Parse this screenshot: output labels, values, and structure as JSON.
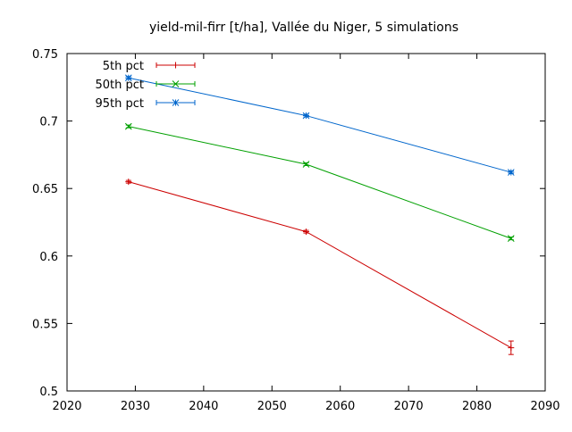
{
  "chart_data": {
    "type": "line",
    "title": "yield-mil-firr [t/ha], Vallée du Niger, 5 simulations",
    "xlabel": "",
    "ylabel": "",
    "xlim": [
      2020,
      2090
    ],
    "ylim": [
      0.5,
      0.75
    ],
    "xticks": [
      "2020",
      "2030",
      "2040",
      "2050",
      "2060",
      "2070",
      "2080",
      "2090"
    ],
    "yticks": [
      "0.5",
      "0.55",
      "0.6",
      "0.65",
      "0.7",
      "0.75"
    ],
    "x": [
      2029,
      2055,
      2085
    ],
    "grid": false,
    "legend_position": "top-left",
    "series": [
      {
        "name": "5th pct",
        "color": "#cc0000",
        "marker": "plus",
        "values": [
          0.655,
          0.618,
          0.532
        ],
        "errors": [
          0.001,
          0.001,
          0.005
        ]
      },
      {
        "name": "50th pct",
        "color": "#00a000",
        "marker": "cross",
        "values": [
          0.696,
          0.668,
          0.613
        ],
        "errors": [
          0.001,
          0.001,
          0.001
        ]
      },
      {
        "name": "95th pct",
        "color": "#0066cc",
        "marker": "star",
        "values": [
          0.732,
          0.704,
          0.662
        ],
        "errors": [
          0.001,
          0.001,
          0.001
        ]
      }
    ]
  }
}
